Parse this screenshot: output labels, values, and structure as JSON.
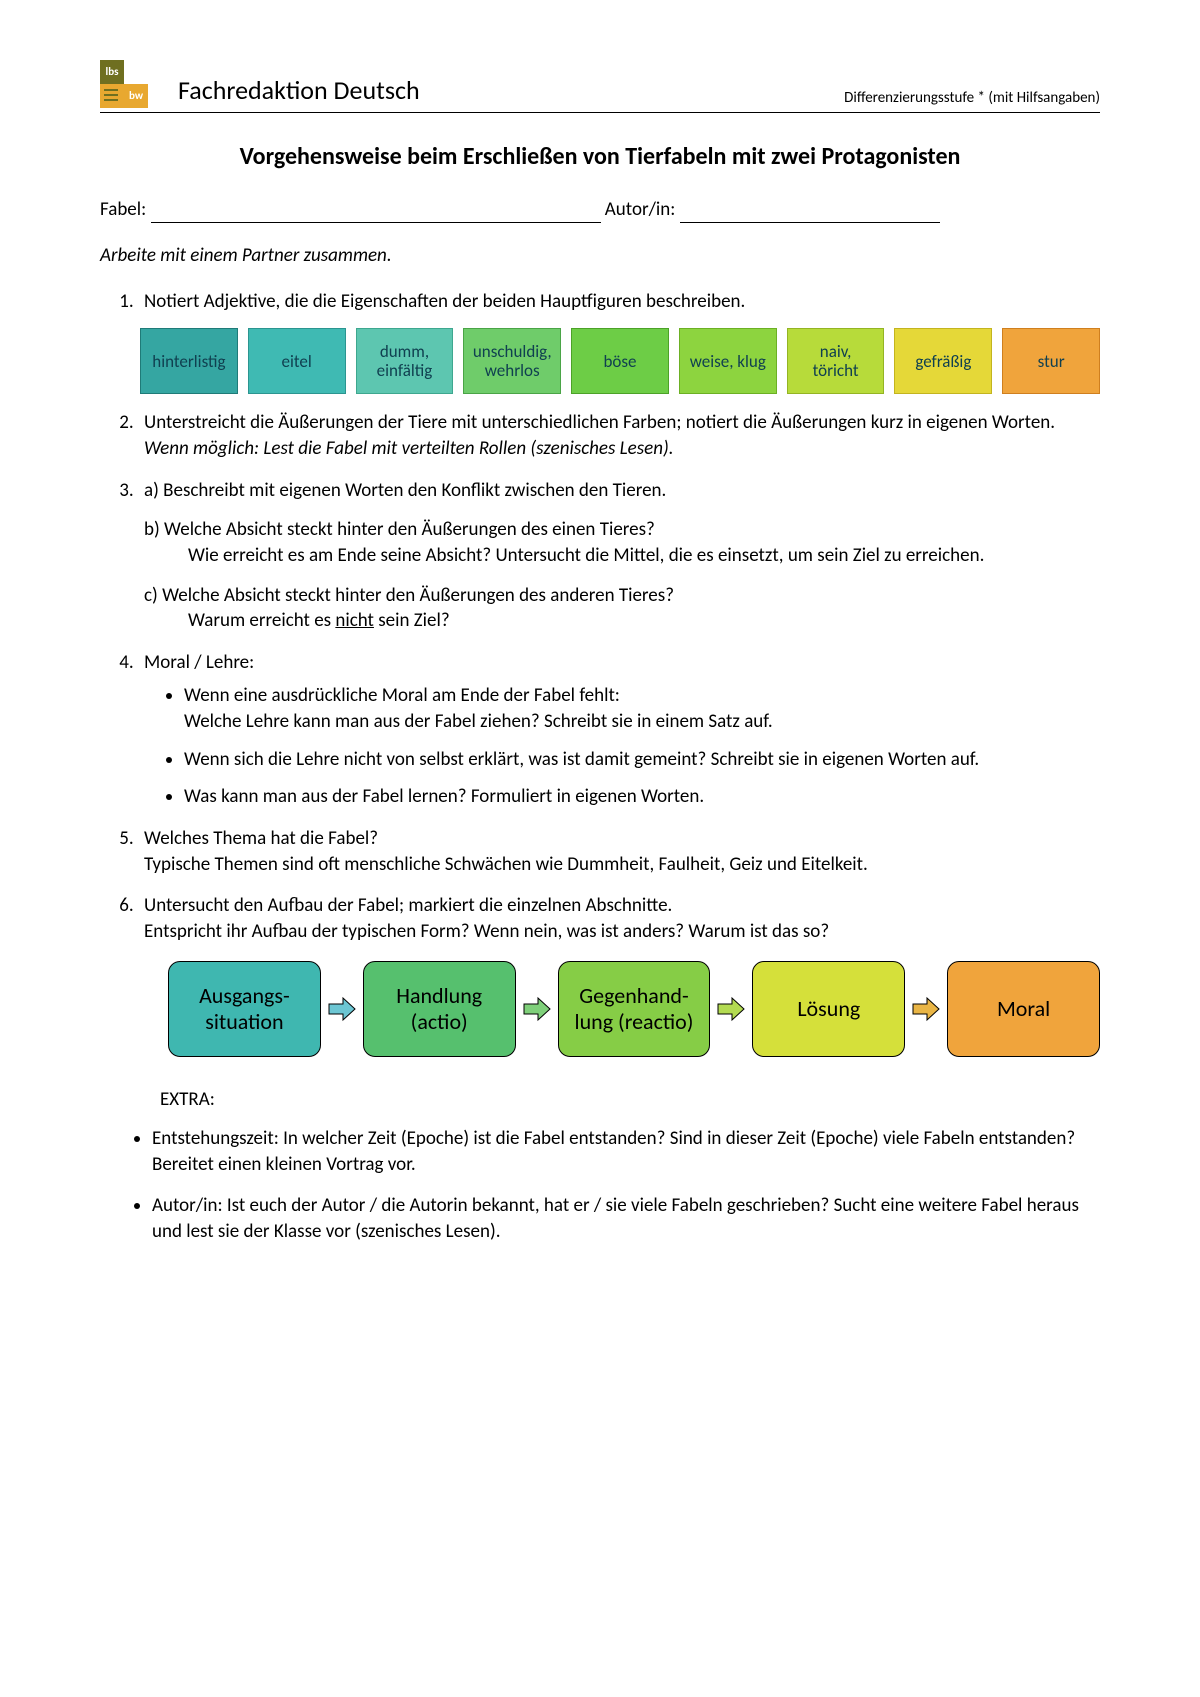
{
  "header": {
    "logo_top": "lbs",
    "logo_bottom": "bw",
    "title": "Fachredaktion Deutsch",
    "subtitle": "Differenzierungsstufe * (mit Hilfsangaben)"
  },
  "main_title": "Vorgehensweise beim Erschließen von Tierfabeln mit zwei Protagonisten",
  "form": {
    "fabel_label": "Fabel:",
    "autor_label": "Autor/in:"
  },
  "instruction": "Arbeite mit einem Partner zusammen.",
  "task1": "Notiert Adjektive, die die Eigenschaften der beiden Hauptfiguren beschreiben.",
  "adjectives": [
    {
      "label": "hinterlistig",
      "bg": "#35a6a2",
      "border": "#1f7b78"
    },
    {
      "label": "eitel",
      "bg": "#3fbab3",
      "border": "#2b9590"
    },
    {
      "label": "dumm,\neinfältig",
      "bg": "#5dc6b0",
      "border": "#3ea78f"
    },
    {
      "label": "unschuldig,\nwehrlos",
      "bg": "#6fcc6a",
      "border": "#4aa446"
    },
    {
      "label": "böse",
      "bg": "#6dcd46",
      "border": "#4ca228"
    },
    {
      "label": "weise, klug",
      "bg": "#8dd43f",
      "border": "#6cb024"
    },
    {
      "label": "naiv,\ntöricht",
      "bg": "#b7db3a",
      "border": "#94b423"
    },
    {
      "label": "gefräßig",
      "bg": "#e5d838",
      "border": "#c3b41f"
    },
    {
      "label": "stur",
      "bg": "#f0a43c",
      "border": "#cf7f1f"
    }
  ],
  "task2_a": "Unterstreicht die Äußerungen der Tiere mit unterschiedlichen Farben; notiert die Äußerungen kurz in eigenen Worten.",
  "task2_b": "Wenn möglich: Lest die Fabel mit verteilten Rollen (szenisches Lesen).",
  "task3_a": "a) Beschreibt mit eigenen Worten den Konflikt zwischen den Tieren.",
  "task3_b1": "b) Welche Absicht steckt hinter den Äußerungen des einen Tieres?",
  "task3_b2": "Wie erreicht es am Ende seine Absicht?  Untersucht die Mittel, die es einsetzt, um sein Ziel zu erreichen.",
  "task3_c1": "c) Welche Absicht steckt hinter den Äußerungen des anderen Tieres?",
  "task3_c2_pre": "Warum erreicht es ",
  "task3_c2_u": "nicht",
  "task3_c2_post": " sein Ziel?",
  "task4_h": "Moral / Lehre:",
  "task4_b1": "Wenn eine ausdrückliche Moral am Ende der Fabel fehlt:\nWelche Lehre kann man aus der Fabel ziehen? Schreibt sie in einem Satz auf.",
  "task4_b2": "Wenn sich die Lehre nicht von selbst erklärt, was ist damit gemeint? Schreibt sie in eigenen Worten auf.",
  "task4_b3": "Was kann man aus der Fabel lernen? Formuliert in eigenen Worten.",
  "task5_a": "Welches Thema hat die Fabel?",
  "task5_b": "Typische Themen sind oft menschliche Schwächen wie Dummheit, Faulheit, Geiz und Eitelkeit.",
  "task6_a": "Untersucht den Aufbau der Fabel; markiert die einzelnen Abschnitte.",
  "task6_b": "Entspricht ihr Aufbau der typischen Form? Wenn nein, was ist anders? Warum ist das so?",
  "flow": [
    {
      "label": "Ausgangs-\nsituation",
      "bg": "#3fb7b0",
      "arrow": "#6cc6d3"
    },
    {
      "label": "Handlung\n(actio)",
      "bg": "#56c06e",
      "arrow": "#7fd07a"
    },
    {
      "label": "Gegenhand-\nlung (reactio)",
      "bg": "#86cd46",
      "arrow": "#b3db52"
    },
    {
      "label": "Lösung",
      "bg": "#d5e03a",
      "arrow": "#e9b545"
    },
    {
      "label": "Moral",
      "bg": "#f0a43c",
      "arrow": null
    }
  ],
  "extra_h": "EXTRA:",
  "extra1": "Entstehungszeit: In welcher Zeit (Epoche) ist die Fabel entstanden? Sind in dieser Zeit (Epoche) viele Fabeln entstanden? Bereitet einen kleinen Vortrag vor.",
  "extra2": "Autor/in: Ist euch der Autor / die Autorin bekannt, hat er / sie viele Fabeln geschrieben? Sucht eine weitere Fabel heraus und lest sie der Klasse vor (szenisches Lesen)."
}
